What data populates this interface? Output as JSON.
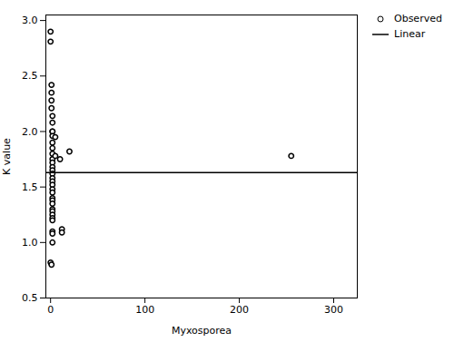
{
  "chart_data": {
    "type": "scatter",
    "xlabel": "Myxosporea",
    "ylabel": "K value",
    "xlim": [
      -5,
      325
    ],
    "ylim": [
      0.5,
      3.05
    ],
    "xticks": [
      0,
      100,
      200,
      300
    ],
    "yticks": [
      0.5,
      {
        "value": 1.0,
        "label": "1.0"
      },
      1.5,
      {
        "value": 2.0,
        "label": "2.0"
      },
      2.5,
      {
        "value": 3.0,
        "label": "3.0"
      }
    ],
    "grid": false,
    "legend": "right",
    "series": [
      {
        "name": "Observed",
        "type": "scatter",
        "marker": "circle",
        "color": "black",
        "x": [
          0,
          0,
          0,
          1,
          1,
          1,
          1,
          1,
          2,
          2,
          2,
          2,
          2,
          2,
          2,
          2,
          2,
          2,
          2,
          2,
          2,
          2,
          2,
          2,
          2,
          2,
          2,
          2,
          2,
          2,
          2,
          2,
          2,
          2,
          2,
          2,
          2,
          5,
          5,
          10,
          12,
          12,
          20,
          255
        ],
        "values": [
          2.9,
          2.81,
          0.82,
          2.42,
          2.35,
          2.28,
          2.21,
          0.8,
          2.14,
          2.08,
          2.0,
          2.0,
          1.96,
          1.9,
          1.85,
          1.8,
          1.75,
          1.72,
          1.68,
          1.65,
          1.62,
          1.58,
          1.55,
          1.52,
          1.48,
          1.45,
          1.4,
          1.38,
          1.35,
          1.3,
          1.28,
          1.25,
          1.22,
          1.2,
          1.1,
          1.08,
          1.0,
          1.78,
          1.95,
          1.75,
          1.12,
          1.09,
          1.82,
          1.78
        ]
      },
      {
        "name": "Linear",
        "type": "line",
        "line_style": "solid",
        "color": "black",
        "x": [
          -5,
          325
        ],
        "values": [
          1.63,
          1.63
        ]
      }
    ]
  }
}
